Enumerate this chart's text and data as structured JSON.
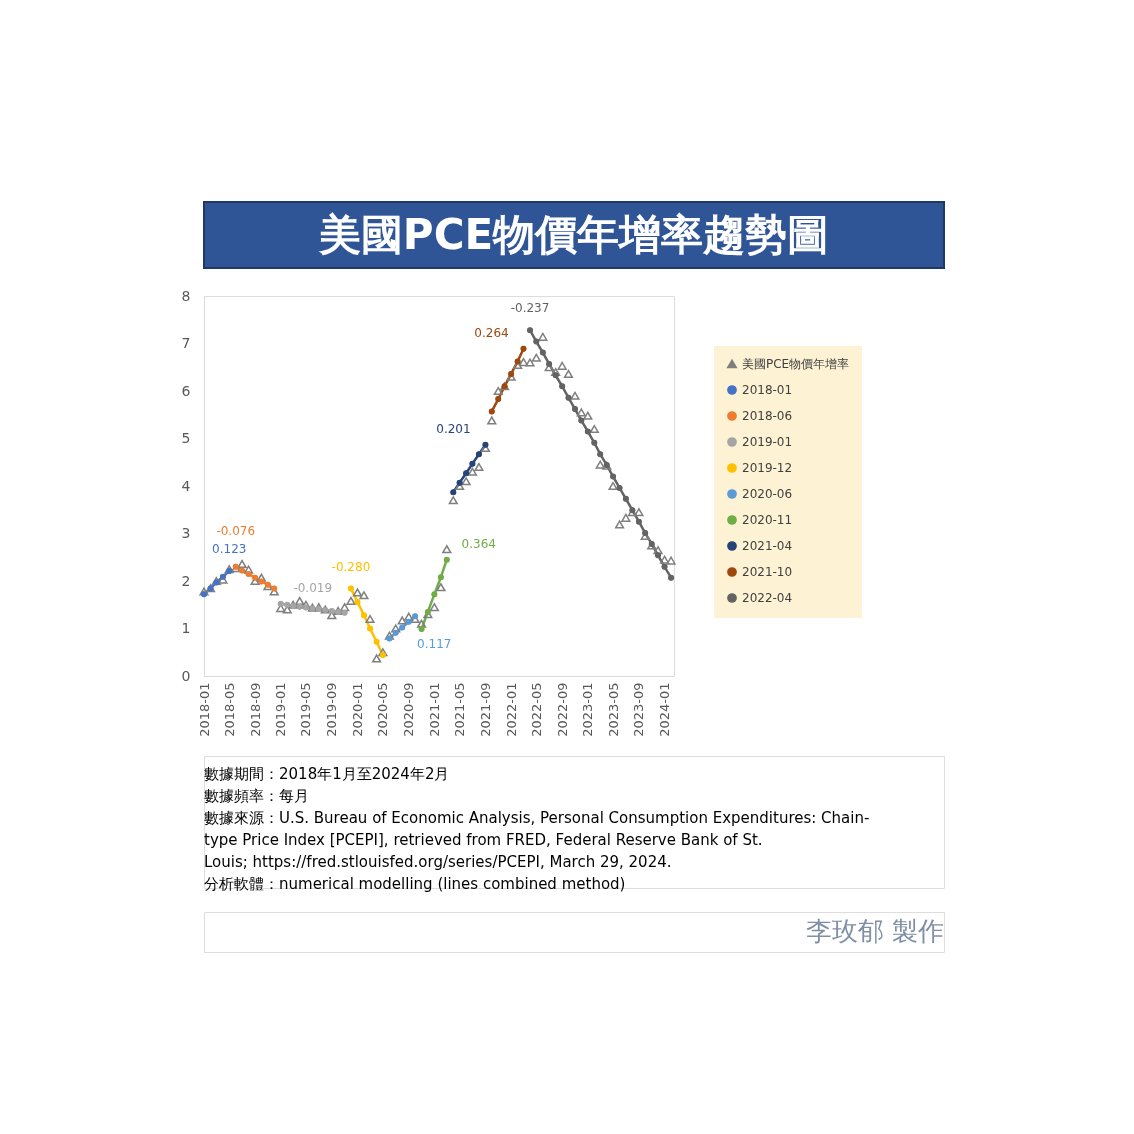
{
  "chart_data": {
    "type": "line",
    "title": "美國PCE物價年增率趨勢圖",
    "xlim": [
      "2018-01-01",
      "2024-02-15"
    ],
    "xticks": [
      "2018-01",
      "2018-05",
      "2018-09",
      "2019-01",
      "2019-05",
      "2019-09",
      "2020-01",
      "2020-05",
      "2020-09",
      "2021-01",
      "2021-05",
      "2021-09",
      "2022-01",
      "2022-05",
      "2022-09",
      "2023-01",
      "2023-05",
      "2023-09",
      "2024-01"
    ],
    "ylim": [
      0,
      8
    ],
    "yticks": [
      0,
      1,
      2,
      3,
      4,
      5,
      6,
      7,
      8
    ],
    "legend": "right",
    "series": [
      {
        "name": "美國PCE物價年增率",
        "type": "scatter",
        "marker": "triangle",
        "color": "#7f7f7f",
        "x": [
          "2018-01",
          "2018-02",
          "2018-03",
          "2018-04",
          "2018-05",
          "2018-06",
          "2018-07",
          "2018-08",
          "2018-09",
          "2018-10",
          "2018-11",
          "2018-12",
          "2019-01",
          "2019-02",
          "2019-03",
          "2019-04",
          "2019-05",
          "2019-06",
          "2019-07",
          "2019-08",
          "2019-09",
          "2019-10",
          "2019-11",
          "2019-12",
          "2020-01",
          "2020-02",
          "2020-03",
          "2020-04",
          "2020-05",
          "2020-06",
          "2020-07",
          "2020-08",
          "2020-09",
          "2020-10",
          "2020-11",
          "2020-12",
          "2021-01",
          "2021-02",
          "2021-03",
          "2021-04",
          "2021-05",
          "2021-06",
          "2021-07",
          "2021-08",
          "2021-09",
          "2021-10",
          "2021-11",
          "2021-12",
          "2022-01",
          "2022-02",
          "2022-03",
          "2022-04",
          "2022-05",
          "2022-06",
          "2022-07",
          "2022-08",
          "2022-09",
          "2022-10",
          "2022-11",
          "2022-12",
          "2023-01",
          "2023-02",
          "2023-03",
          "2023-04",
          "2023-05",
          "2023-06",
          "2023-07",
          "2023-08",
          "2023-09",
          "2023-10",
          "2023-11",
          "2023-12",
          "2024-01",
          "2024-02"
        ],
        "values": [
          1.78,
          1.85,
          2.0,
          2.03,
          2.25,
          2.27,
          2.36,
          2.24,
          2.0,
          2.07,
          1.89,
          1.78,
          1.43,
          1.4,
          1.5,
          1.58,
          1.5,
          1.44,
          1.45,
          1.4,
          1.28,
          1.37,
          1.45,
          1.58,
          1.76,
          1.7,
          1.2,
          0.37,
          0.5,
          0.85,
          1.0,
          1.17,
          1.25,
          1.2,
          1.1,
          1.3,
          1.45,
          1.87,
          2.67,
          3.7,
          4.0,
          4.1,
          4.3,
          4.4,
          4.8,
          5.38,
          6.0,
          6.1,
          6.3,
          6.55,
          6.61,
          6.6,
          6.7,
          7.14,
          6.5,
          6.4,
          6.53,
          6.36,
          5.9,
          5.55,
          5.48,
          5.2,
          4.45,
          4.43,
          4.0,
          3.19,
          3.33,
          3.45,
          3.45,
          2.95,
          2.75,
          2.65,
          2.45,
          2.43
        ]
      },
      {
        "name": "2018-01",
        "marker": "circle",
        "color": "#4472c4",
        "x": [
          "2018-01",
          "2018-02",
          "2018-03",
          "2018-04",
          "2018-05"
        ],
        "values": [
          1.72,
          1.84,
          1.97,
          2.09,
          2.21
        ]
      },
      {
        "name": "2018-06",
        "marker": "circle",
        "color": "#ed7d31",
        "x": [
          "2018-06",
          "2018-07",
          "2018-08",
          "2018-09",
          "2018-10",
          "2018-11",
          "2018-12"
        ],
        "values": [
          2.3,
          2.22,
          2.15,
          2.07,
          1.99,
          1.92,
          1.84
        ]
      },
      {
        "name": "2019-01",
        "marker": "circle",
        "color": "#a5a5a5",
        "x": [
          "2019-01",
          "2019-02",
          "2019-03",
          "2019-04",
          "2019-05",
          "2019-06",
          "2019-07",
          "2019-08",
          "2019-09",
          "2019-10",
          "2019-11"
        ],
        "values": [
          1.52,
          1.5,
          1.48,
          1.46,
          1.44,
          1.42,
          1.41,
          1.39,
          1.37,
          1.35,
          1.33
        ]
      },
      {
        "name": "2019-12",
        "marker": "circle",
        "color": "#ffc000",
        "x": [
          "2019-12",
          "2020-01",
          "2020-02",
          "2020-03",
          "2020-04",
          "2020-05"
        ],
        "values": [
          1.84,
          1.56,
          1.28,
          1.0,
          0.72,
          0.44
        ]
      },
      {
        "name": "2020-06",
        "marker": "circle",
        "color": "#5b9bd5",
        "x": [
          "2020-06",
          "2020-07",
          "2020-08",
          "2020-09",
          "2020-10"
        ],
        "values": [
          0.79,
          0.91,
          1.02,
          1.14,
          1.26
        ]
      },
      {
        "name": "2020-11",
        "marker": "circle",
        "color": "#70ad47",
        "x": [
          "2020-11",
          "2020-12",
          "2021-01",
          "2021-02",
          "2021-03"
        ],
        "values": [
          0.99,
          1.35,
          1.72,
          2.08,
          2.45
        ]
      },
      {
        "name": "2021-04",
        "marker": "circle",
        "color": "#264478",
        "x": [
          "2021-04",
          "2021-05",
          "2021-06",
          "2021-07",
          "2021-08",
          "2021-09"
        ],
        "values": [
          3.87,
          4.07,
          4.27,
          4.47,
          4.67,
          4.87
        ]
      },
      {
        "name": "2021-10",
        "marker": "circle",
        "color": "#9e480e",
        "x": [
          "2021-10",
          "2021-11",
          "2021-12",
          "2022-01",
          "2022-02",
          "2022-03"
        ],
        "values": [
          5.57,
          5.83,
          6.1,
          6.36,
          6.62,
          6.89
        ]
      },
      {
        "name": "2022-04",
        "marker": "circle",
        "color": "#636363",
        "x": [
          "2022-04",
          "2022-05",
          "2022-06",
          "2022-07",
          "2022-08",
          "2022-09",
          "2022-10",
          "2022-11",
          "2022-12",
          "2023-01",
          "2023-02",
          "2023-03",
          "2023-04",
          "2023-05",
          "2023-06",
          "2023-07",
          "2023-08",
          "2023-09",
          "2023-10",
          "2023-11",
          "2023-12",
          "2024-01",
          "2024-02"
        ],
        "values": [
          7.28,
          7.04,
          6.81,
          6.57,
          6.33,
          6.1,
          5.86,
          5.62,
          5.38,
          5.15,
          4.91,
          4.67,
          4.44,
          4.2,
          3.96,
          3.73,
          3.49,
          3.25,
          3.01,
          2.78,
          2.54,
          2.3,
          2.07
        ]
      }
    ],
    "annotations": [
      "0.123",
      "-0.076",
      "-0.019",
      "-0.280",
      "0.117",
      "0.364",
      "0.201",
      "0.264",
      "-0.237",
      "數據期間：2018年1月至2024年2月",
      "數據頻率：每月",
      "數據來源：U.S. Bureau of Economic Analysis, Personal Consumption Expenditures: Chain-type Price Index [PCEPI], retrieved from FRED, Federal Reserve Bank of St. Louis; https://fred.stlouisfed.org/series/PCEPI, March 29, 2024.",
      "分析軟體：numerical modelling (lines combined method)",
      "李玫郁 製作"
    ]
  }
}
